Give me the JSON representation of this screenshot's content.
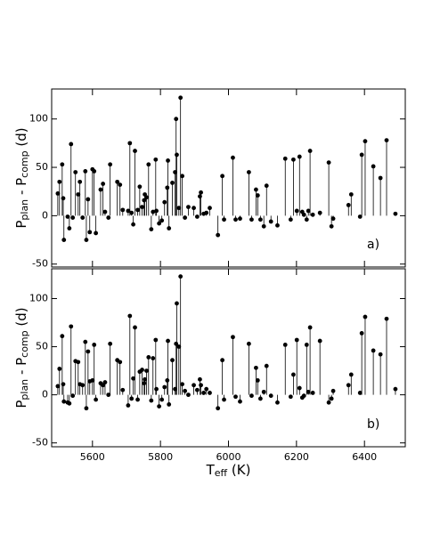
{
  "chart_data": [
    {
      "type": "stem",
      "annotation": "a)",
      "color": "#000000",
      "ylabel": [
        {
          "text": "P"
        },
        {
          "text": "plan",
          "sub": true
        },
        {
          "text": " - P"
        },
        {
          "text": "comp",
          "sub": true
        },
        {
          "text": " (d)"
        }
      ],
      "xlim": [
        5480,
        6520
      ],
      "ylim": [
        -53,
        131
      ],
      "xticks": [
        5600,
        5800,
        6000,
        6200,
        6400
      ],
      "yticks": [
        -50,
        0,
        50,
        100
      ],
      "xtick_labels": false,
      "x": [
        5498,
        5503,
        5511,
        5514,
        5516,
        5527,
        5532,
        5537,
        5542,
        5550,
        5558,
        5563,
        5571,
        5579,
        5582,
        5587,
        5592,
        5600,
        5605,
        5610,
        5624,
        5631,
        5637,
        5647,
        5652,
        5673,
        5681,
        5689,
        5705,
        5710,
        5715,
        5720,
        5725,
        5733,
        5739,
        5746,
        5752,
        5754,
        5759,
        5765,
        5773,
        5778,
        5786,
        5788,
        5796,
        5804,
        5812,
        5820,
        5822,
        5825,
        5835,
        5843,
        5846,
        5848,
        5854,
        5859,
        5864,
        5872,
        5882,
        5898,
        5908,
        5916,
        5919,
        5927,
        5935,
        5945,
        5969,
        5982,
        5987,
        6013,
        6021,
        6034,
        6060,
        6068,
        6081,
        6086,
        6094,
        6104,
        6112,
        6125,
        6144,
        6167,
        6183,
        6191,
        6201,
        6209,
        6217,
        6222,
        6230,
        6235,
        6240,
        6248,
        6269,
        6295,
        6303,
        6308,
        6353,
        6361,
        6387,
        6392,
        6402,
        6426,
        6447,
        6465,
        6491
      ],
      "values": [
        23,
        35,
        53,
        18,
        -25,
        -1,
        -13,
        74,
        -2,
        45,
        22,
        35,
        -2,
        46,
        -25,
        17,
        -17,
        48,
        46,
        -18,
        27,
        33,
        4,
        -2,
        53,
        35,
        32,
        6,
        5,
        75,
        3,
        -9,
        67,
        6,
        30,
        9,
        16,
        22,
        19,
        53,
        -14,
        4,
        58,
        5,
        -8,
        -5,
        14,
        29,
        57,
        -13,
        34,
        45,
        100,
        63,
        8,
        122,
        41,
        -2,
        9,
        8,
        -1,
        20,
        24,
        2,
        3,
        8,
        -20,
        41,
        -4,
        60,
        -4,
        -3,
        45,
        -4,
        27,
        21,
        -4,
        -11,
        31,
        -6,
        -10,
        59,
        -4,
        58,
        5,
        61,
        4,
        1,
        -4,
        5,
        67,
        1,
        3,
        55,
        -11,
        -3,
        11,
        22,
        -1,
        63,
        77,
        51,
        39,
        78,
        2
      ]
    },
    {
      "type": "stem",
      "annotation": "b)",
      "color": "#000000",
      "ylabel": [
        {
          "text": "P"
        },
        {
          "text": "plan",
          "sub": true
        },
        {
          "text": " - P"
        },
        {
          "text": "comp",
          "sub": true
        },
        {
          "text": " (d)"
        }
      ],
      "xlabel": [
        {
          "text": "T"
        },
        {
          "text": "eff",
          "sub": true
        },
        {
          "text": " (K)"
        }
      ],
      "xlim": [
        5480,
        6520
      ],
      "ylim": [
        -54,
        131
      ],
      "xticks": [
        5600,
        5800,
        6000,
        6200,
        6400
      ],
      "yticks": [
        -50,
        0,
        50,
        100
      ],
      "xtick_labels": true,
      "x": [
        5498,
        5503,
        5511,
        5514,
        5516,
        5527,
        5532,
        5537,
        5542,
        5550,
        5558,
        5563,
        5571,
        5579,
        5582,
        5587,
        5592,
        5600,
        5605,
        5610,
        5624,
        5631,
        5637,
        5647,
        5652,
        5673,
        5681,
        5689,
        5705,
        5710,
        5715,
        5720,
        5725,
        5733,
        5739,
        5746,
        5752,
        5754,
        5759,
        5765,
        5773,
        5778,
        5786,
        5788,
        5796,
        5804,
        5812,
        5820,
        5822,
        5825,
        5835,
        5843,
        5846,
        5848,
        5854,
        5859,
        5864,
        5872,
        5882,
        5898,
        5908,
        5916,
        5919,
        5927,
        5935,
        5945,
        5969,
        5982,
        5987,
        6013,
        6021,
        6034,
        6060,
        6068,
        6081,
        6086,
        6094,
        6104,
        6112,
        6125,
        6144,
        6167,
        6183,
        6191,
        6201,
        6209,
        6217,
        6222,
        6230,
        6235,
        6240,
        6248,
        6269,
        6295,
        6303,
        6308,
        6353,
        6361,
        6387,
        6392,
        6402,
        6426,
        6447,
        6465,
        6491
      ],
      "values": [
        9,
        27,
        61,
        11,
        -7,
        -8,
        -9,
        71,
        -1,
        35,
        34,
        11,
        10,
        55,
        -14,
        45,
        14,
        15,
        52,
        -5,
        12,
        10,
        13,
        0,
        53,
        36,
        34,
        5,
        -11,
        82,
        -4,
        17,
        70,
        -5,
        24,
        26,
        12,
        16,
        25,
        39,
        -6,
        38,
        57,
        6,
        -12,
        -5,
        8,
        15,
        56,
        -10,
        36,
        6,
        53,
        95,
        50,
        123,
        11,
        4,
        0,
        10,
        5,
        16,
        10,
        2,
        6,
        2,
        -14,
        36,
        -5,
        60,
        -2,
        -7,
        53,
        -1,
        28,
        15,
        -4,
        3,
        30,
        -1,
        -8,
        52,
        -2,
        21,
        57,
        7,
        -3,
        -1,
        52,
        3,
        70,
        2,
        56,
        -8,
        -4,
        4,
        10,
        21,
        2,
        64,
        81,
        46,
        42,
        79,
        6
      ]
    }
  ]
}
